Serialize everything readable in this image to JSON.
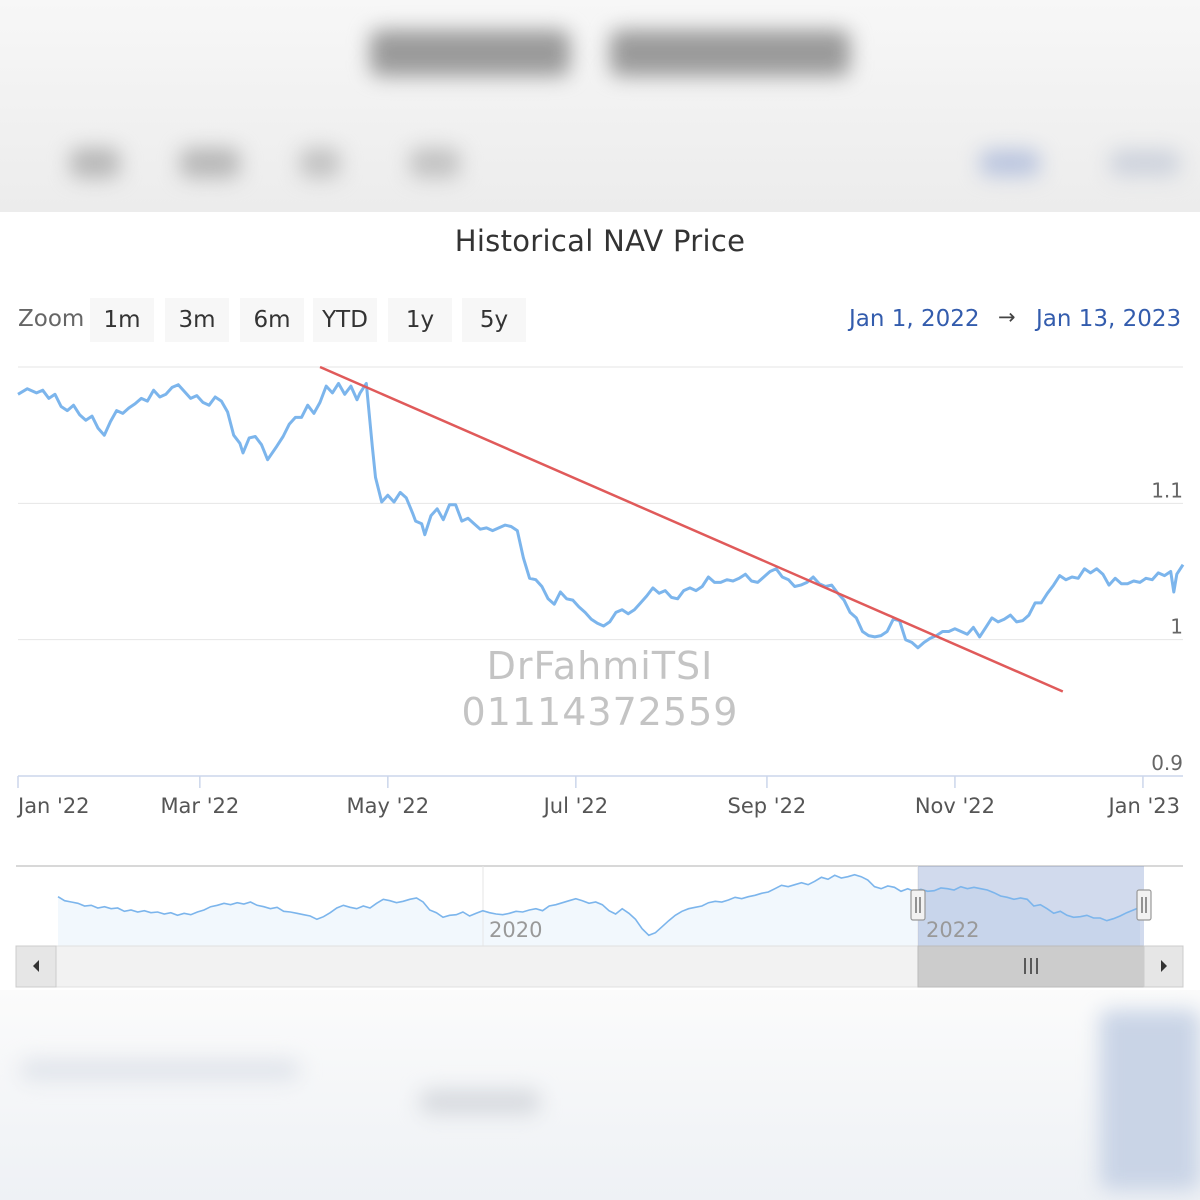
{
  "chart_data": {
    "type": "line",
    "title": "Historical NAV Price",
    "zoom": {
      "label": "Zoom",
      "buttons": [
        "1m",
        "3m",
        "6m",
        "YTD",
        "1y",
        "5y"
      ]
    },
    "range": {
      "from": "Jan 1, 2022",
      "arrow": "→",
      "to": "Jan 13, 2023"
    },
    "y_axis": {
      "ylim": [
        0.9,
        1.2
      ],
      "ticks": [
        0.9,
        1,
        1.1
      ],
      "tick_labels": [
        "0.9",
        "1",
        "1.1"
      ]
    },
    "x_axis": {
      "xlim": [
        0,
        378
      ],
      "ticks": [
        {
          "day": 0,
          "label": "Jan '22"
        },
        {
          "day": 59,
          "label": "Mar '22"
        },
        {
          "day": 120,
          "label": "May '22"
        },
        {
          "day": 181,
          "label": "Jul '22"
        },
        {
          "day": 243,
          "label": "Sep '22"
        },
        {
          "day": 304,
          "label": "Nov '22"
        },
        {
          "day": 365,
          "label": "Jan '23"
        }
      ]
    },
    "series": [
      {
        "name": "NAV",
        "color": "#7cb5ec",
        "points": [
          [
            0,
            1.18
          ],
          [
            3,
            1.184
          ],
          [
            6,
            1.181
          ],
          [
            8,
            1.183
          ],
          [
            10,
            1.177
          ],
          [
            12,
            1.18
          ],
          [
            14,
            1.171
          ],
          [
            16,
            1.168
          ],
          [
            18,
            1.172
          ],
          [
            20,
            1.165
          ],
          [
            22,
            1.161
          ],
          [
            24,
            1.164
          ],
          [
            26,
            1.155
          ],
          [
            28,
            1.15
          ],
          [
            30,
            1.16
          ],
          [
            32,
            1.168
          ],
          [
            34,
            1.166
          ],
          [
            36,
            1.17
          ],
          [
            38,
            1.173
          ],
          [
            40,
            1.177
          ],
          [
            42,
            1.175
          ],
          [
            44,
            1.183
          ],
          [
            46,
            1.178
          ],
          [
            48,
            1.18
          ],
          [
            50,
            1.185
          ],
          [
            52,
            1.187
          ],
          [
            54,
            1.182
          ],
          [
            56,
            1.177
          ],
          [
            58,
            1.179
          ],
          [
            60,
            1.174
          ],
          [
            62,
            1.172
          ],
          [
            64,
            1.178
          ],
          [
            66,
            1.175
          ],
          [
            68,
            1.167
          ],
          [
            70,
            1.15
          ],
          [
            72,
            1.144
          ],
          [
            73,
            1.137
          ],
          [
            75,
            1.148
          ],
          [
            77,
            1.149
          ],
          [
            79,
            1.143
          ],
          [
            81,
            1.132
          ],
          [
            84,
            1.142
          ],
          [
            86,
            1.149
          ],
          [
            88,
            1.158
          ],
          [
            90,
            1.163
          ],
          [
            92,
            1.163
          ],
          [
            94,
            1.172
          ],
          [
            96,
            1.166
          ],
          [
            98,
            1.174
          ],
          [
            100,
            1.186
          ],
          [
            102,
            1.181
          ],
          [
            104,
            1.188
          ],
          [
            106,
            1.18
          ],
          [
            108,
            1.186
          ],
          [
            110,
            1.176
          ],
          [
            111,
            1.181
          ],
          [
            113,
            1.188
          ],
          [
            115,
            1.141
          ],
          [
            116,
            1.119
          ],
          [
            118,
            1.101
          ],
          [
            120,
            1.106
          ],
          [
            122,
            1.101
          ],
          [
            124,
            1.108
          ],
          [
            126,
            1.104
          ],
          [
            128,
            1.093
          ],
          [
            129,
            1.087
          ],
          [
            131,
            1.085
          ],
          [
            132,
            1.077
          ],
          [
            134,
            1.091
          ],
          [
            136,
            1.096
          ],
          [
            138,
            1.088
          ],
          [
            140,
            1.099
          ],
          [
            142,
            1.099
          ],
          [
            144,
            1.087
          ],
          [
            146,
            1.089
          ],
          [
            148,
            1.085
          ],
          [
            150,
            1.081
          ],
          [
            152,
            1.082
          ],
          [
            154,
            1.08
          ],
          [
            156,
            1.082
          ],
          [
            158,
            1.084
          ],
          [
            160,
            1.083
          ],
          [
            162,
            1.08
          ],
          [
            164,
            1.06
          ],
          [
            166,
            1.045
          ],
          [
            168,
            1.044
          ],
          [
            170,
            1.039
          ],
          [
            172,
            1.03
          ],
          [
            174,
            1.026
          ],
          [
            176,
            1.035
          ],
          [
            178,
            1.03
          ],
          [
            180,
            1.029
          ],
          [
            182,
            1.024
          ],
          [
            184,
            1.02
          ],
          [
            186,
            1.015
          ],
          [
            188,
            1.012
          ],
          [
            190,
            1.01
          ],
          [
            192,
            1.013
          ],
          [
            194,
            1.02
          ],
          [
            196,
            1.022
          ],
          [
            198,
            1.019
          ],
          [
            200,
            1.022
          ],
          [
            202,
            1.027
          ],
          [
            204,
            1.032
          ],
          [
            206,
            1.038
          ],
          [
            208,
            1.034
          ],
          [
            210,
            1.036
          ],
          [
            212,
            1.031
          ],
          [
            214,
            1.03
          ],
          [
            216,
            1.036
          ],
          [
            218,
            1.038
          ],
          [
            220,
            1.036
          ],
          [
            222,
            1.039
          ],
          [
            224,
            1.046
          ],
          [
            226,
            1.042
          ],
          [
            228,
            1.042
          ],
          [
            230,
            1.044
          ],
          [
            232,
            1.043
          ],
          [
            234,
            1.045
          ],
          [
            236,
            1.048
          ],
          [
            238,
            1.043
          ],
          [
            240,
            1.042
          ],
          [
            242,
            1.046
          ],
          [
            244,
            1.05
          ],
          [
            246,
            1.052
          ],
          [
            248,
            1.046
          ],
          [
            250,
            1.044
          ],
          [
            252,
            1.039
          ],
          [
            254,
            1.04
          ],
          [
            256,
            1.042
          ],
          [
            258,
            1.046
          ],
          [
            260,
            1.041
          ],
          [
            262,
            1.039
          ],
          [
            264,
            1.04
          ],
          [
            266,
            1.034
          ],
          [
            268,
            1.029
          ],
          [
            270,
            1.02
          ],
          [
            272,
            1.016
          ],
          [
            274,
            1.006
          ],
          [
            276,
            1.003
          ],
          [
            278,
            1.002
          ],
          [
            280,
            1.003
          ],
          [
            282,
            1.006
          ],
          [
            284,
            1.015
          ],
          [
            286,
            1.014
          ],
          [
            288,
            1.0
          ],
          [
            290,
            0.998
          ],
          [
            292,
            0.994
          ],
          [
            294,
            0.998
          ],
          [
            296,
            1.001
          ],
          [
            298,
            1.003
          ],
          [
            300,
            1.006
          ],
          [
            302,
            1.006
          ],
          [
            304,
            1.008
          ],
          [
            306,
            1.006
          ],
          [
            308,
            1.004
          ],
          [
            310,
            1.009
          ],
          [
            312,
            1.002
          ],
          [
            314,
            1.009
          ],
          [
            316,
            1.016
          ],
          [
            318,
            1.013
          ],
          [
            320,
            1.015
          ],
          [
            322,
            1.018
          ],
          [
            324,
            1.013
          ],
          [
            326,
            1.014
          ],
          [
            328,
            1.018
          ],
          [
            330,
            1.027
          ],
          [
            332,
            1.027
          ],
          [
            334,
            1.034
          ],
          [
            336,
            1.04
          ],
          [
            338,
            1.047
          ],
          [
            340,
            1.044
          ],
          [
            342,
            1.046
          ],
          [
            344,
            1.045
          ],
          [
            346,
            1.052
          ],
          [
            348,
            1.049
          ],
          [
            350,
            1.052
          ],
          [
            352,
            1.048
          ],
          [
            354,
            1.04
          ],
          [
            356,
            1.045
          ],
          [
            358,
            1.041
          ],
          [
            360,
            1.041
          ],
          [
            362,
            1.043
          ],
          [
            364,
            1.042
          ],
          [
            366,
            1.045
          ],
          [
            368,
            1.044
          ],
          [
            370,
            1.049
          ],
          [
            372,
            1.047
          ],
          [
            374,
            1.05
          ],
          [
            375,
            1.035
          ],
          [
            376,
            1.048
          ],
          [
            378,
            1.055
          ]
        ]
      }
    ],
    "annotations": [
      {
        "type": "trendline",
        "color": "#e05a5a",
        "from": [
          98,
          1.2
        ],
        "to": [
          339,
          0.962
        ]
      }
    ],
    "navigator": {
      "labels": [
        "2020",
        "2022"
      ],
      "series": [
        1.064,
        1.058,
        1.056,
        1.054,
        1.05,
        1.051,
        1.047,
        1.049,
        1.046,
        1.047,
        1.042,
        1.044,
        1.041,
        1.043,
        1.04,
        1.041,
        1.038,
        1.04,
        1.036,
        1.039,
        1.037,
        1.041,
        1.044,
        1.049,
        1.051,
        1.054,
        1.052,
        1.055,
        1.053,
        1.056,
        1.051,
        1.049,
        1.046,
        1.048,
        1.042,
        1.041,
        1.039,
        1.037,
        1.035,
        1.03,
        1.034,
        1.04,
        1.047,
        1.051,
        1.048,
        1.046,
        1.05,
        1.047,
        1.054,
        1.06,
        1.058,
        1.055,
        1.057,
        1.06,
        1.062,
        1.056,
        1.044,
        1.04,
        1.033,
        1.036,
        1.037,
        1.041,
        1.035,
        1.039,
        1.043,
        1.04,
        1.038,
        1.037,
        1.039,
        1.042,
        1.041,
        1.044,
        1.046,
        1.043,
        1.05,
        1.052,
        1.055,
        1.058,
        1.061,
        1.058,
        1.054,
        1.056,
        1.052,
        1.043,
        1.038,
        1.046,
        1.039,
        1.03,
        1.016,
        1.006,
        1.01,
        1.019,
        1.028,
        1.036,
        1.042,
        1.046,
        1.048,
        1.05,
        1.055,
        1.057,
        1.056,
        1.059,
        1.063,
        1.061,
        1.064,
        1.066,
        1.069,
        1.071,
        1.076,
        1.081,
        1.079,
        1.082,
        1.085,
        1.082,
        1.087,
        1.093,
        1.09,
        1.096,
        1.092,
        1.094,
        1.097,
        1.094,
        1.089,
        1.079,
        1.076,
        1.08,
        1.078,
        1.072,
        1.076,
        1.072,
        1.075,
        1.072,
        1.073,
        1.077,
        1.076,
        1.074,
        1.079,
        1.076,
        1.078,
        1.076,
        1.074,
        1.07,
        1.065,
        1.063,
        1.06,
        1.062,
        1.06,
        1.05,
        1.052,
        1.046,
        1.039,
        1.042,
        1.036,
        1.033,
        1.034,
        1.036,
        1.032,
        1.032,
        1.028,
        1.031,
        1.035,
        1.04,
        1.044,
        1.048
      ]
    },
    "watermark": [
      "DrFahmiTSI",
      "01114372559"
    ]
  }
}
